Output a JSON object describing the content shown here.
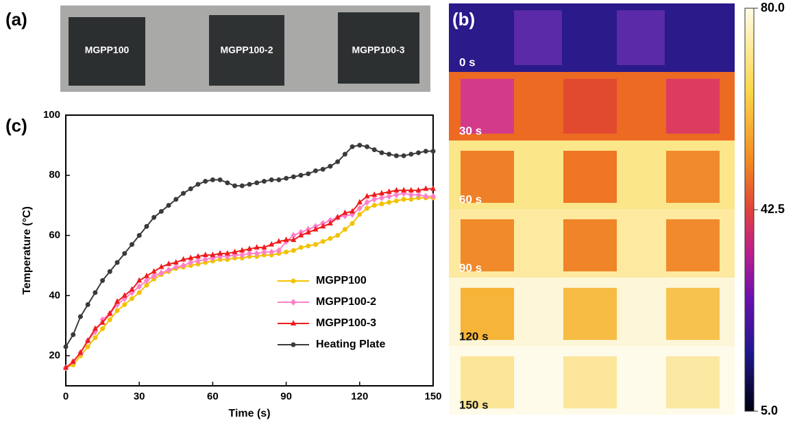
{
  "panel_labels": [
    "(a)",
    "(b)",
    "(c)"
  ],
  "photo": {
    "labels": [
      "MGPP100",
      "MGPP100-2",
      "MGPP100-3"
    ]
  },
  "thermal": {
    "labels": [
      "0 s",
      "30 s",
      "60 s",
      "90 s",
      "120 s",
      "150 s"
    ]
  },
  "colorbar": {
    "lim": [
      5,
      80
    ],
    "ticks": [
      {
        "value": 80,
        "label": "80.0"
      },
      {
        "value": 42.5,
        "label": "42.5"
      },
      {
        "value": 5,
        "label": "5.0"
      }
    ]
  },
  "chart_data": {
    "type": "line",
    "xlabel": "Time (s)",
    "ylabel": "Temperature (°C)",
    "xlim": [
      0,
      150
    ],
    "xticks": [
      0,
      30,
      60,
      90,
      120,
      150
    ],
    "ylim": [
      10,
      100
    ],
    "yticks": [
      20,
      40,
      60,
      80,
      100
    ],
    "legend": "lower right",
    "x": [
      0,
      3,
      6,
      9,
      12,
      15,
      18,
      21,
      24,
      27,
      30,
      33,
      36,
      39,
      42,
      45,
      48,
      51,
      54,
      57,
      60,
      63,
      66,
      69,
      72,
      75,
      78,
      81,
      84,
      87,
      90,
      93,
      96,
      99,
      102,
      105,
      108,
      111,
      114,
      117,
      120,
      123,
      126,
      129,
      132,
      135,
      138,
      141,
      144,
      147,
      150
    ],
    "series": [
      {
        "name": "MGPP100",
        "color": "#f2c200",
        "marker": "circle",
        "values": [
          16,
          17,
          20,
          23,
          26,
          29,
          32,
          35,
          37,
          39,
          41,
          43.5,
          45.5,
          47,
          48,
          49,
          49.5,
          50,
          50.5,
          51,
          51.5,
          52,
          52,
          52.5,
          52.5,
          53,
          53,
          53.5,
          53.5,
          54,
          54.5,
          55,
          56,
          56.5,
          57,
          58,
          59,
          60,
          62,
          64,
          67,
          69,
          70,
          70.5,
          71,
          71.5,
          72,
          72,
          72.5,
          72.5,
          72.5
        ]
      },
      {
        "name": "MGPP100-2",
        "color": "#ff80c8",
        "marker": "diamond",
        "values": [
          16,
          18,
          21,
          25,
          28,
          32,
          34,
          37,
          39,
          41,
          43,
          45,
          46.5,
          47.5,
          48.5,
          49.5,
          50,
          51,
          51.5,
          52,
          52.5,
          53,
          53,
          53.5,
          53.5,
          54,
          54,
          54.5,
          54.5,
          55,
          58,
          60,
          61,
          62,
          63,
          64,
          65,
          66,
          66.5,
          67,
          69,
          71,
          72,
          72.5,
          73,
          73.5,
          74,
          73.5,
          73.5,
          73,
          73
        ]
      },
      {
        "name": "MGPP100-3",
        "color": "#ee1c1c",
        "marker": "triangle",
        "values": [
          16,
          18,
          21,
          25,
          29,
          31,
          34,
          38,
          40,
          42,
          45,
          46.5,
          48,
          49.5,
          50.5,
          51,
          52,
          52.5,
          53,
          53.5,
          53.5,
          54,
          54,
          54.5,
          55,
          55.5,
          56,
          56,
          57,
          58,
          58.5,
          58.5,
          60,
          61,
          62,
          63,
          64,
          66,
          67.5,
          68,
          71,
          73,
          73.5,
          74,
          74.5,
          75,
          75,
          75,
          75,
          75.5,
          75.5
        ]
      },
      {
        "name": "Heating Plate",
        "color": "#3a3a3a",
        "marker": "circle",
        "values": [
          23,
          27,
          33,
          37,
          41,
          45,
          48,
          51,
          54,
          57,
          60,
          63,
          66,
          68,
          70,
          72,
          74,
          75.5,
          77,
          78,
          78.5,
          78.5,
          77.5,
          76.5,
          76.5,
          77,
          77.5,
          78,
          78.5,
          78.5,
          79,
          79.5,
          80,
          80.5,
          81.5,
          82,
          83,
          84.5,
          87,
          89.5,
          90,
          89.5,
          88.5,
          87.5,
          87,
          86.5,
          86.5,
          87,
          87.5,
          88,
          88
        ]
      }
    ]
  }
}
